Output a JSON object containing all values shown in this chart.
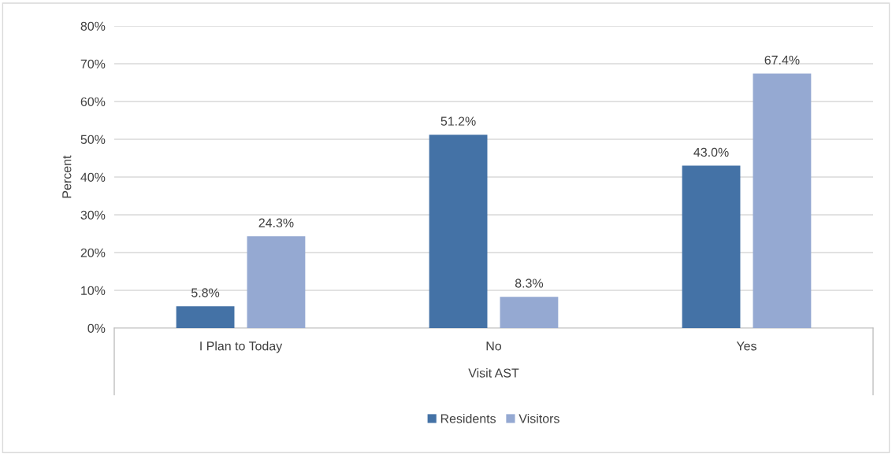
{
  "chart_data": {
    "type": "bar",
    "xlabel": "Visit AST",
    "ylabel": "Percent",
    "categories": [
      "I Plan to Today",
      "No",
      "Yes"
    ],
    "series": [
      {
        "name": "Residents",
        "color": "#4472a6",
        "values": [
          5.8,
          51.2,
          43.0
        ]
      },
      {
        "name": "Visitors",
        "color": "#95a9d2",
        "values": [
          24.3,
          8.3,
          67.4
        ]
      }
    ],
    "ylim": [
      0,
      80
    ],
    "yticks": [
      {
        "value": 0,
        "label": "0%"
      },
      {
        "value": 10,
        "label": "10%"
      },
      {
        "value": 20,
        "label": "20%"
      },
      {
        "value": 30,
        "label": "30%"
      },
      {
        "value": 40,
        "label": "40%"
      },
      {
        "value": 50,
        "label": "50%"
      },
      {
        "value": 60,
        "label": "60%"
      },
      {
        "value": 70,
        "label": "70%"
      },
      {
        "value": 80,
        "label": "80%"
      }
    ],
    "value_labels": [
      [
        "5.8%",
        "51.2%",
        "43.0%"
      ],
      [
        "24.3%",
        "8.3%",
        "67.4%"
      ]
    ],
    "grid": "y",
    "legend": "bottom"
  }
}
